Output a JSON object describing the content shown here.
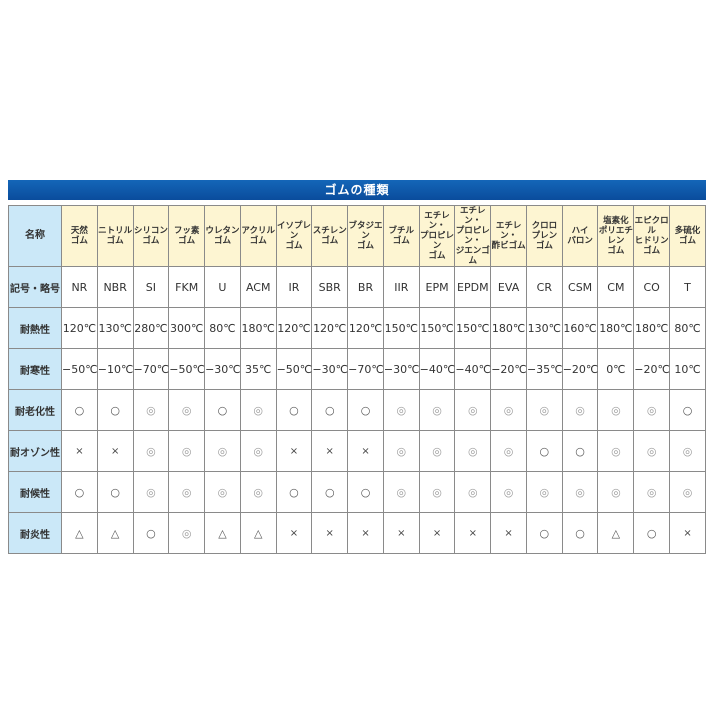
{
  "title": "ゴムの種類",
  "row_labels": {
    "name": "名称",
    "symbol": "記号・略号",
    "heat": "耐熱性",
    "cold": "耐寒性",
    "aging": "耐老化性",
    "ozone": "耐オゾン性",
    "weather": "耐候性",
    "flame": "耐炎性"
  },
  "columns": [
    {
      "name": "天然\nゴム",
      "symbol": "NR",
      "heat": "120℃",
      "cold": "−50℃",
      "aging": "○",
      "ozone": "×",
      "weather": "○",
      "flame": "△"
    },
    {
      "name": "ニトリル\nゴム",
      "symbol": "NBR",
      "heat": "130℃",
      "cold": "−10℃",
      "aging": "○",
      "ozone": "×",
      "weather": "○",
      "flame": "△"
    },
    {
      "name": "シリコン\nゴム",
      "symbol": "SI",
      "heat": "280℃",
      "cold": "−70℃",
      "aging": "◎",
      "ozone": "◎",
      "weather": "◎",
      "flame": "○"
    },
    {
      "name": "フッ素\nゴム",
      "symbol": "FKM",
      "heat": "300℃",
      "cold": "−50℃",
      "aging": "◎",
      "ozone": "◎",
      "weather": "◎",
      "flame": "◎"
    },
    {
      "name": "ウレタン\nゴム",
      "symbol": "U",
      "heat": "80℃",
      "cold": "−30℃",
      "aging": "○",
      "ozone": "◎",
      "weather": "◎",
      "flame": "△"
    },
    {
      "name": "アクリル\nゴム",
      "symbol": "ACM",
      "heat": "180℃",
      "cold": "35℃",
      "aging": "◎",
      "ozone": "◎",
      "weather": "◎",
      "flame": "△"
    },
    {
      "name": "イソプレン\nゴム",
      "symbol": "IR",
      "heat": "120℃",
      "cold": "−50℃",
      "aging": "○",
      "ozone": "×",
      "weather": "○",
      "flame": "×"
    },
    {
      "name": "スチレン\nゴム",
      "symbol": "SBR",
      "heat": "120℃",
      "cold": "−30℃",
      "aging": "○",
      "ozone": "×",
      "weather": "○",
      "flame": "×"
    },
    {
      "name": "ブタジエン\nゴム",
      "symbol": "BR",
      "heat": "120℃",
      "cold": "−70℃",
      "aging": "○",
      "ozone": "×",
      "weather": "○",
      "flame": "×"
    },
    {
      "name": "ブチル\nゴム",
      "symbol": "IIR",
      "heat": "150℃",
      "cold": "−30℃",
      "aging": "◎",
      "ozone": "◎",
      "weather": "◎",
      "flame": "×"
    },
    {
      "name": "エチレン・\nプロピレン\nゴム",
      "symbol": "EPM",
      "heat": "150℃",
      "cold": "−40℃",
      "aging": "◎",
      "ozone": "◎",
      "weather": "◎",
      "flame": "×"
    },
    {
      "name": "エチレン・\nプロピレン・\nジエンゴム",
      "symbol": "EPDM",
      "heat": "150℃",
      "cold": "−40℃",
      "aging": "◎",
      "ozone": "◎",
      "weather": "◎",
      "flame": "×"
    },
    {
      "name": "エチレン・\n酢ビゴム",
      "symbol": "EVA",
      "heat": "180℃",
      "cold": "−20℃",
      "aging": "◎",
      "ozone": "◎",
      "weather": "◎",
      "flame": "×"
    },
    {
      "name": "クロロ\nプレン\nゴム",
      "symbol": "CR",
      "heat": "130℃",
      "cold": "−35℃",
      "aging": "◎",
      "ozone": "○",
      "weather": "◎",
      "flame": "○"
    },
    {
      "name": "ハイ\nパロン",
      "symbol": "CSM",
      "heat": "160℃",
      "cold": "−20℃",
      "aging": "◎",
      "ozone": "○",
      "weather": "◎",
      "flame": "○"
    },
    {
      "name": "塩素化\nポリエチレン\nゴム",
      "symbol": "CM",
      "heat": "180℃",
      "cold": "0℃",
      "aging": "◎",
      "ozone": "◎",
      "weather": "◎",
      "flame": "△"
    },
    {
      "name": "エピクロル\nヒドリン\nゴム",
      "symbol": "CO",
      "heat": "180℃",
      "cold": "−20℃",
      "aging": "◎",
      "ozone": "◎",
      "weather": "◎",
      "flame": "○"
    },
    {
      "name": "多硫化\nゴム",
      "symbol": "T",
      "heat": "80℃",
      "cold": "10℃",
      "aging": "○",
      "ozone": "◎",
      "weather": "◎",
      "flame": "×"
    }
  ],
  "colors": {
    "title_bar": "#0a4c9c",
    "header_bg": "#fdf5d2",
    "row_header_bg": "#cbe8f8",
    "double_circle": "#9a9a9a"
  }
}
